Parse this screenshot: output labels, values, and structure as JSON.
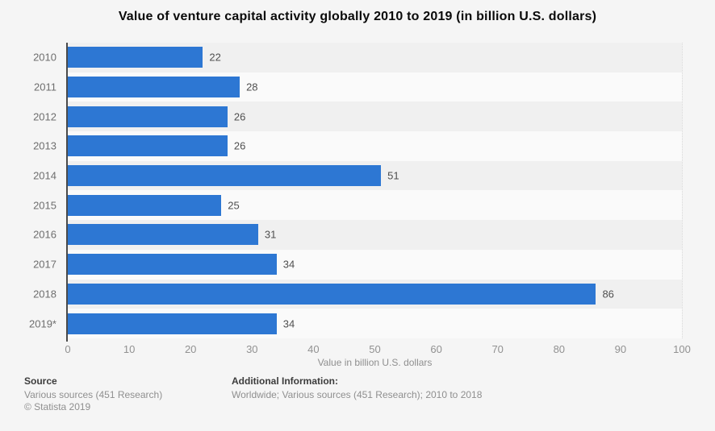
{
  "chart_data": {
    "type": "bar",
    "orientation": "horizontal",
    "title": "Value of venture capital activity globally 2010 to 2019 (in billion U.S. dollars)",
    "categories": [
      "2010",
      "2011",
      "2012",
      "2013",
      "2014",
      "2015",
      "2016",
      "2017",
      "2018",
      "2019*"
    ],
    "values": [
      22,
      28,
      26,
      26,
      51,
      25,
      31,
      34,
      86,
      34
    ],
    "xlabel": "Value in billion U.S. dollars",
    "xlim": [
      0,
      100
    ],
    "xticks": [
      0,
      10,
      20,
      30,
      40,
      50,
      60,
      70,
      80,
      90,
      100
    ],
    "grid": "vertical-dotted",
    "legend": "none",
    "bar_color": "#2d77d3",
    "band_colors": [
      "#f0f0f0",
      "#fafafa"
    ]
  },
  "footer": {
    "source_label": "Source",
    "source_lines": [
      "Various sources (451 Research)",
      "© Statista 2019"
    ],
    "additional_label": "Additional Information:",
    "additional_text": "Worldwide; Various sources (451 Research); 2010 to 2018"
  }
}
